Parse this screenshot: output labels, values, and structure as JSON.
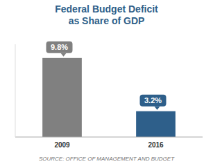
{
  "chart_data": {
    "type": "bar",
    "title": "Federal Budget Deficit",
    "subtitle": "as Share of GDP",
    "categories": [
      "2009",
      "2016"
    ],
    "values": [
      9.8,
      3.2
    ],
    "value_labels": [
      "9.8%",
      "3.2%"
    ],
    "colors": [
      "#808080",
      "#2E5F8A"
    ],
    "ylim": [
      0,
      11.5
    ],
    "yticks": [],
    "data_labels": true,
    "tick_labels": "x",
    "annotations": [
      "SOURCE: OFFICE OF MANAGEMENT AND BUDGET"
    ]
  }
}
